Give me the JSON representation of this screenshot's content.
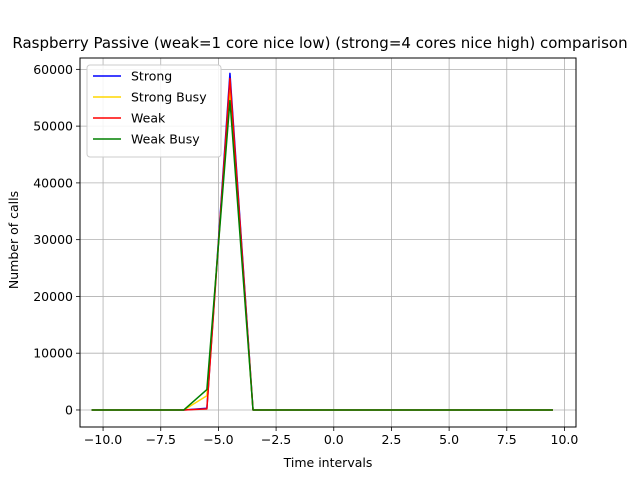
{
  "chart_data": {
    "type": "line",
    "title": "Raspberry Passive (weak=1 core nice low) (strong=4 cores nice high) comparison",
    "xlabel": "Time intervals",
    "ylabel": "Number of calls",
    "xlim": [
      -11.0,
      10.5
    ],
    "ylim": [
      -3000,
      62000
    ],
    "xticks": [
      -10.0,
      -7.5,
      -5.0,
      -2.5,
      0.0,
      2.5,
      5.0,
      7.5,
      10.0
    ],
    "xtick_labels": [
      "−10.0",
      "−7.5",
      "−5.0",
      "−2.5",
      "0.0",
      "2.5",
      "5.0",
      "7.5",
      "10.0"
    ],
    "yticks": [
      0,
      10000,
      20000,
      30000,
      40000,
      50000,
      60000
    ],
    "ytick_labels": [
      "0",
      "10000",
      "20000",
      "30000",
      "40000",
      "50000",
      "60000"
    ],
    "grid": true,
    "legend_position": "upper-left",
    "x": [
      -10.5,
      -9.5,
      -8.5,
      -7.5,
      -6.5,
      -5.5,
      -4.5,
      -3.5,
      -2.5,
      -1.5,
      -0.5,
      0.5,
      1.5,
      2.5,
      3.5,
      4.5,
      5.5,
      6.5,
      7.5,
      8.5,
      9.5
    ],
    "series": [
      {
        "name": "Strong",
        "color": "#0000ff",
        "values": [
          0,
          0,
          0,
          0,
          0,
          300,
          59300,
          0,
          0,
          0,
          0,
          0,
          0,
          0,
          0,
          0,
          0,
          0,
          0,
          0,
          0
        ]
      },
      {
        "name": "Strong Busy",
        "color": "#ffd700",
        "values": [
          0,
          0,
          0,
          0,
          0,
          2500,
          56000,
          0,
          0,
          0,
          0,
          0,
          0,
          0,
          0,
          0,
          0,
          0,
          0,
          0,
          0
        ]
      },
      {
        "name": "Weak",
        "color": "#ff0000",
        "values": [
          0,
          0,
          0,
          0,
          0,
          200,
          58400,
          0,
          0,
          0,
          0,
          0,
          0,
          0,
          0,
          0,
          0,
          0,
          0,
          0,
          0
        ]
      },
      {
        "name": "Weak Busy",
        "color": "#008000",
        "values": [
          0,
          0,
          0,
          0,
          0,
          3600,
          54500,
          0,
          0,
          0,
          0,
          0,
          0,
          0,
          0,
          0,
          0,
          0,
          0,
          0,
          0
        ]
      }
    ]
  }
}
